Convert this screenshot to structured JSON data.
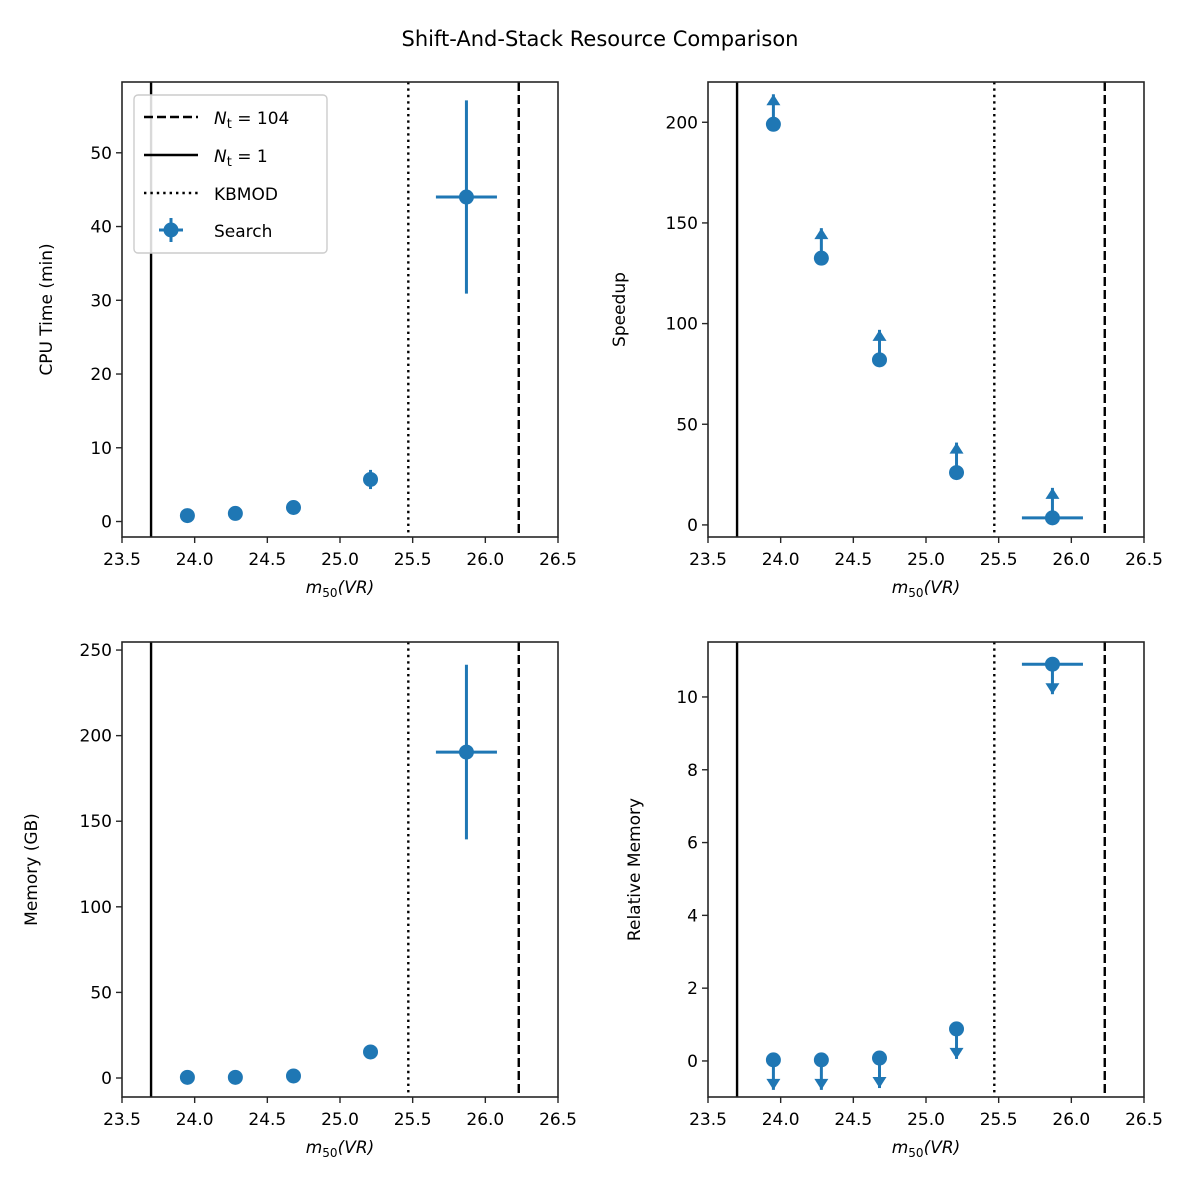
{
  "suptitle": "Shift-And-Stack Resource Comparison",
  "colors": {
    "series": "#1f77b4",
    "lines": "#000000",
    "axes": "#262626",
    "legend_border": "#cccccc"
  },
  "reference_lines": [
    {
      "name": "nt104",
      "label_sym": "N",
      "label_sub": "t",
      "label_rest": " = 104",
      "style": "dashed",
      "x": 26.23
    },
    {
      "name": "nt1",
      "label_sym": "N",
      "label_sub": "t",
      "label_rest": " = 1",
      "style": "solid",
      "x": 23.7
    },
    {
      "name": "kbmod",
      "label": "KBMOD",
      "style": "dotted",
      "x": 25.47
    }
  ],
  "series_label": "Search",
  "chart_data": [
    {
      "type": "scatter",
      "panel": "cpu-time",
      "xlabel_main": "m",
      "xlabel_sub": "50",
      "xlabel_rest": "(VR)",
      "ylabel": "CPU Time (min)",
      "xlim": [
        23.5,
        26.5
      ],
      "ylim": [
        -2.1,
        59.6
      ],
      "xticks": [
        "23.5",
        "24.0",
        "24.5",
        "25.0",
        "25.5",
        "26.0",
        "26.5"
      ],
      "yticks": [
        "0",
        "10",
        "20",
        "30",
        "40",
        "50"
      ],
      "legend": "upper-left",
      "x": [
        23.95,
        24.28,
        24.68,
        25.21,
        25.87
      ],
      "y": [
        0.8,
        1.1,
        1.9,
        5.7,
        44.0
      ],
      "yerr": [
        0.2,
        0.2,
        0.3,
        1.3,
        13.1
      ],
      "xerr": [
        0,
        0,
        0,
        0,
        0.21
      ],
      "limit": "none"
    },
    {
      "type": "scatter",
      "panel": "speedup",
      "xlabel_main": "m",
      "xlabel_sub": "50",
      "xlabel_rest": "(VR)",
      "ylabel": "Speedup",
      "xlim": [
        23.5,
        26.5
      ],
      "ylim": [
        -6,
        220
      ],
      "xticks": [
        "23.5",
        "24.0",
        "24.5",
        "25.0",
        "25.5",
        "26.0",
        "26.5"
      ],
      "yticks": [
        "0",
        "50",
        "100",
        "150",
        "200"
      ],
      "x": [
        23.95,
        24.28,
        24.68,
        25.21,
        25.87
      ],
      "y": [
        199,
        132.5,
        82,
        26,
        3.5
      ],
      "yerr": [
        0,
        0,
        0,
        0,
        0
      ],
      "xerr": [
        0,
        0,
        0,
        0,
        0.21
      ],
      "limit": "lower"
    },
    {
      "type": "scatter",
      "panel": "memory",
      "xlabel_main": "m",
      "xlabel_sub": "50",
      "xlabel_rest": "(VR)",
      "ylabel": "Memory (GB)",
      "xlim": [
        23.5,
        26.5
      ],
      "ylim": [
        -11.1,
        254.7
      ],
      "xticks": [
        "23.5",
        "24.0",
        "24.5",
        "25.0",
        "25.5",
        "26.0",
        "26.5"
      ],
      "yticks": [
        "0",
        "50",
        "100",
        "150",
        "200",
        "250"
      ],
      "x": [
        23.95,
        24.28,
        24.68,
        25.21,
        25.87
      ],
      "y": [
        0.4,
        0.4,
        1.2,
        15.2,
        190.4
      ],
      "yerr": [
        0,
        0,
        0,
        0,
        51
      ],
      "xerr": [
        0,
        0,
        0,
        0,
        0.21
      ],
      "limit": "none"
    },
    {
      "type": "scatter",
      "panel": "relative-memory",
      "xlabel_main": "m",
      "xlabel_sub": "50",
      "xlabel_rest": "(VR)",
      "ylabel": "Relative Memory",
      "xlim": [
        23.5,
        26.5
      ],
      "ylim": [
        -0.99,
        11.51
      ],
      "xticks": [
        "23.5",
        "24.0",
        "24.5",
        "25.0",
        "25.5",
        "26.0",
        "26.5"
      ],
      "yticks": [
        "0",
        "2",
        "4",
        "6",
        "8",
        "10"
      ],
      "x": [
        23.95,
        24.28,
        24.68,
        25.21,
        25.87
      ],
      "y": [
        0.03,
        0.03,
        0.08,
        0.88,
        10.9
      ],
      "yerr": [
        0,
        0,
        0,
        0,
        0
      ],
      "xerr": [
        0,
        0,
        0,
        0,
        0.21
      ],
      "limit": "upper"
    }
  ]
}
